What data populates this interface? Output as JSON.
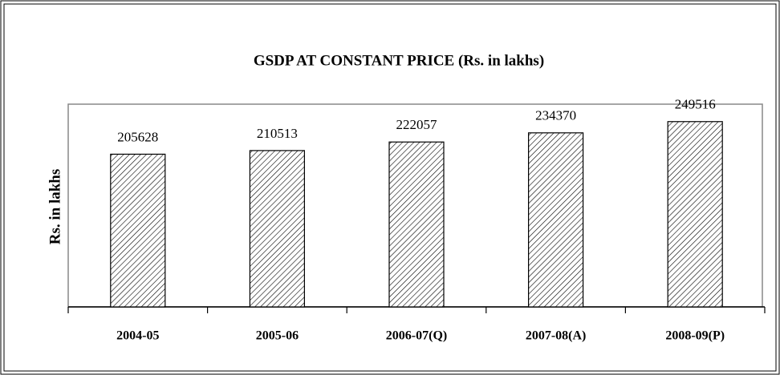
{
  "chart_data": {
    "type": "bar",
    "title": "GSDP AT CONSTANT PRICE (Rs. in lakhs)",
    "y_label": "Rs. in lakhs",
    "categories": [
      "2004-05",
      "2005-06",
      "2006-07(Q)",
      "2007-08(A)",
      "2008-09(P)"
    ],
    "values": [
      205628,
      210513,
      222057,
      234370,
      249516
    ],
    "color": "hatch",
    "ylim": [
      0,
      273000
    ],
    "grid": false
  }
}
